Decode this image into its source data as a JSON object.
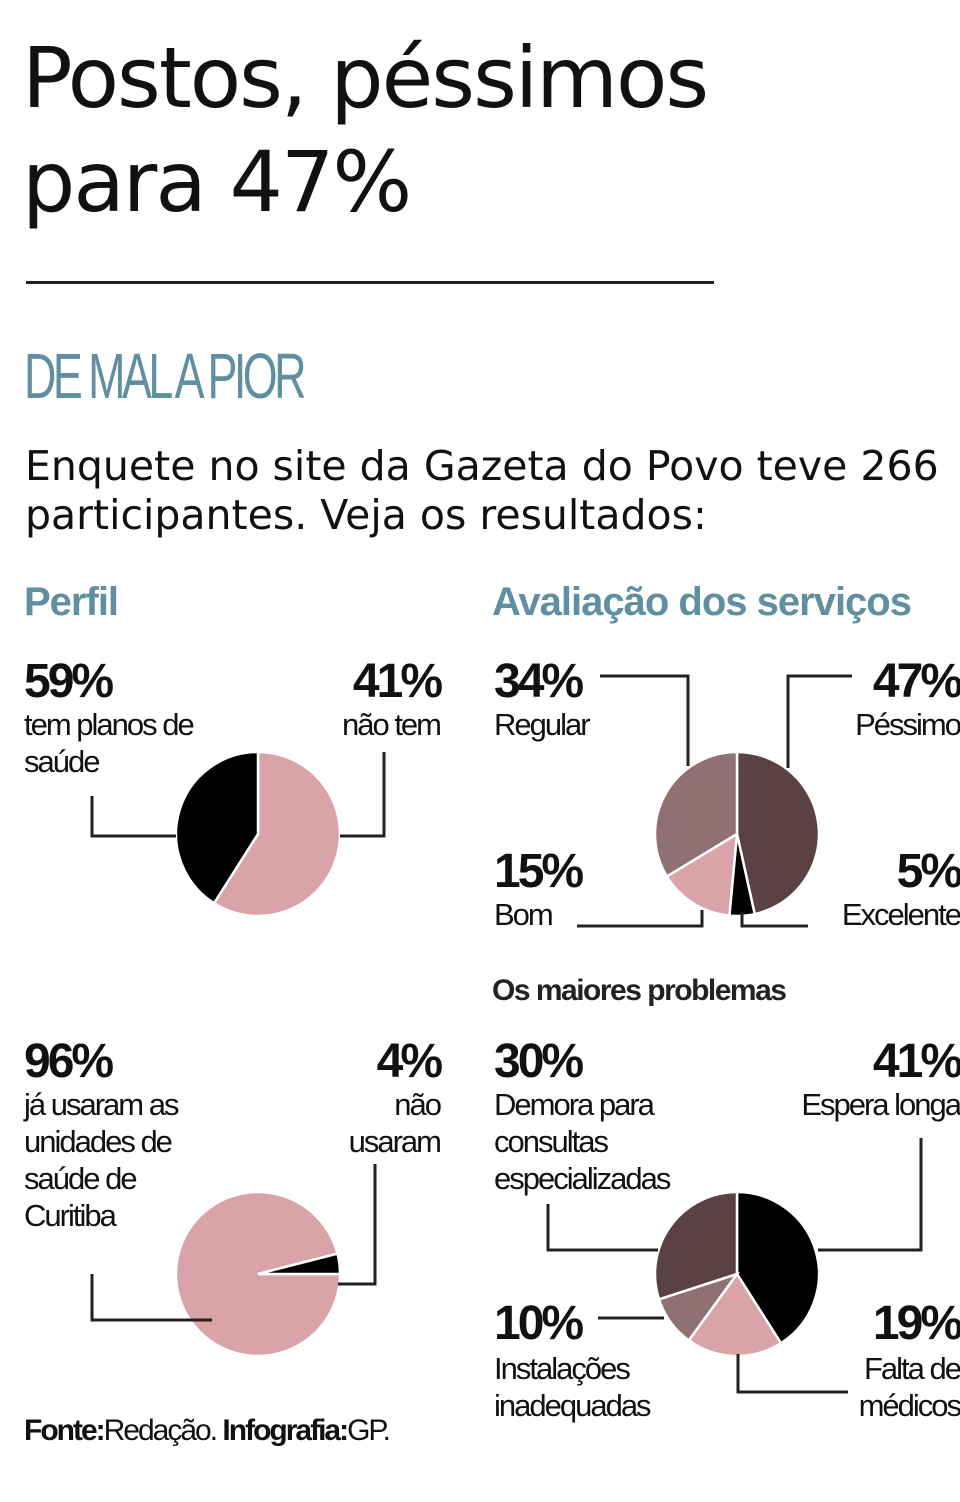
{
  "title": "Postos, péssimos para 47%",
  "section_title": "DE MAL A PIOR",
  "intro": "Enquete no site da Gazeta do Povo teve 266 participantes. Veja os resultados:",
  "left_heading": "Perfil",
  "right_heading": "Avaliação dos serviços",
  "problems_heading": "Os maiores problemas",
  "source": {
    "label": "Fonte:",
    "text": "Redação.",
    "credit_label": "Infografia:",
    "credit": "GP."
  },
  "colors": {
    "accent": "#5f8fa0",
    "pink": "#d9a3a8",
    "mauve": "#8f7073",
    "plum": "#5a4144",
    "black": "#000000"
  },
  "chart_data": [
    {
      "type": "pie",
      "name": "Perfil",
      "slices": [
        {
          "label": "tem planos de saúde",
          "value": 59,
          "display": "59%",
          "color": "#d9a3a8"
        },
        {
          "label": "não tem",
          "value": 41,
          "display": "41%",
          "color": "#000000"
        }
      ]
    },
    {
      "type": "pie",
      "slices": [
        {
          "label": "já usaram as unidades de saúde de Curitiba",
          "value": 96,
          "display": "96%",
          "color": "#d9a3a8"
        },
        {
          "label": "não usaram",
          "value": 4,
          "display": "4%",
          "color": "#000000"
        }
      ]
    },
    {
      "type": "pie",
      "name": "Avaliação dos serviços",
      "slices": [
        {
          "label": "Péssimo",
          "value": 47,
          "display": "47%",
          "color": "#5a4144"
        },
        {
          "label": "Excelente",
          "value": 5,
          "display": "5%",
          "color": "#000000"
        },
        {
          "label": "Bom",
          "value": 15,
          "display": "15%",
          "color": "#d9a3a8"
        },
        {
          "label": "Regular",
          "value": 34,
          "display": "34%",
          "color": "#8f7073"
        }
      ]
    },
    {
      "type": "pie",
      "name": "Os maiores problemas",
      "slices": [
        {
          "label": "Espera longa",
          "value": 41,
          "display": "41%",
          "color": "#000000"
        },
        {
          "label": "Falta de médicos",
          "value": 19,
          "display": "19%",
          "color": "#d9a3a8"
        },
        {
          "label": "Instalações inadequadas",
          "value": 10,
          "display": "10%",
          "color": "#8f7073"
        },
        {
          "label": "Demora para consultas especializadas",
          "value": 30,
          "display": "30%",
          "color": "#5a4144"
        }
      ]
    }
  ]
}
